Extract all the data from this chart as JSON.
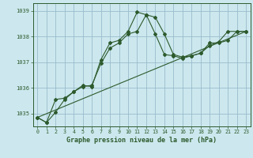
{
  "title": "Graphe pression niveau de la mer (hPa)",
  "background_color": "#cce8ee",
  "grid_color": "#99bbcc",
  "line_color": "#2d5a2d",
  "xlim": [
    -0.5,
    23.5
  ],
  "ylim": [
    1034.5,
    1039.3
  ],
  "yticks": [
    1035,
    1036,
    1037,
    1038,
    1039
  ],
  "xticks": [
    0,
    1,
    2,
    3,
    4,
    5,
    6,
    7,
    8,
    9,
    10,
    11,
    12,
    13,
    14,
    15,
    16,
    17,
    18,
    19,
    20,
    21,
    22,
    23
  ],
  "series1_x": [
    0,
    1,
    2,
    3,
    4,
    5,
    6,
    7,
    8,
    9,
    10,
    11,
    12,
    13,
    14,
    15,
    16,
    17,
    18,
    19,
    20,
    21,
    22,
    23
  ],
  "series1_y": [
    1034.85,
    1034.65,
    1035.05,
    1035.55,
    1035.85,
    1036.05,
    1036.1,
    1036.95,
    1037.55,
    1037.75,
    1038.1,
    1038.2,
    1038.85,
    1038.75,
    1038.1,
    1037.3,
    1037.2,
    1037.25,
    1037.35,
    1037.75,
    1037.75,
    1037.85,
    1038.2,
    1038.2
  ],
  "series2_x": [
    0,
    1,
    2,
    3,
    4,
    5,
    6,
    7,
    8,
    9,
    10,
    11,
    12,
    13,
    14,
    15,
    16,
    17,
    18,
    19,
    20,
    21,
    22,
    23
  ],
  "series2_y": [
    1034.85,
    1034.65,
    1035.55,
    1035.6,
    1035.85,
    1036.1,
    1036.05,
    1037.1,
    1037.75,
    1037.85,
    1038.2,
    1038.95,
    1038.85,
    1038.1,
    1037.3,
    1037.25,
    1037.15,
    1037.25,
    1037.35,
    1037.65,
    1037.8,
    1038.2,
    1038.2,
    1038.2
  ],
  "series3_x": [
    0,
    23
  ],
  "series3_y": [
    1034.85,
    1038.2
  ]
}
